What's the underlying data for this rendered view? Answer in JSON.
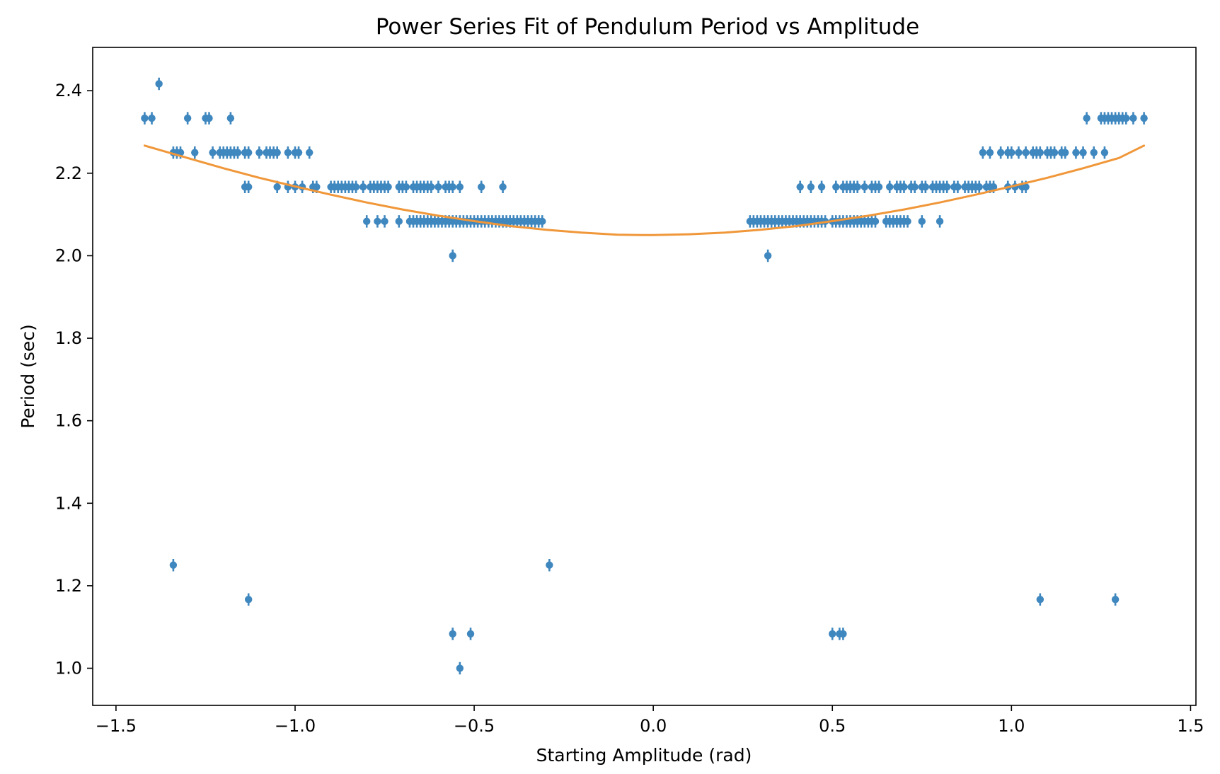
{
  "chart_data": {
    "type": "scatter",
    "title": "Power Series Fit of Pendulum Period vs Amplitude",
    "xlabel": "Starting Amplitude (rad)",
    "ylabel": "Period (sec)",
    "xlim": [
      -1.565,
      1.515
    ],
    "ylim": [
      0.91,
      2.505
    ],
    "grid": false,
    "x_ticks": [
      -1.5,
      -1.0,
      -0.5,
      0.0,
      0.5,
      1.0,
      1.5
    ],
    "x_tick_labels": [
      "−1.5",
      "−1.0",
      "−0.5",
      "0.0",
      "0.5",
      "1.0",
      "1.5"
    ],
    "y_ticks": [
      1.0,
      1.2,
      1.4,
      1.6,
      1.8,
      2.0,
      2.2,
      2.4
    ],
    "y_tick_labels": [
      "1.0",
      "1.2",
      "1.4",
      "1.6",
      "1.8",
      "2.0",
      "2.2",
      "2.4"
    ],
    "colors": {
      "data": "#3f87bf",
      "fit": "#f0973a"
    },
    "series": [
      {
        "kind": "points-with-error-bars",
        "y_error": 0.015,
        "levels": [
          {
            "y": 2.4167,
            "x": [
              -1.38
            ]
          },
          {
            "y": 2.3333,
            "x": [
              -1.42,
              -1.4,
              -1.3,
              -1.25,
              -1.24,
              -1.18,
              1.21,
              1.25,
              1.26,
              1.27,
              1.28,
              1.29,
              1.3,
              1.31,
              1.32,
              1.34,
              1.37
            ]
          },
          {
            "y": 2.25,
            "x": [
              -1.34,
              -1.33,
              -1.32,
              -1.28,
              -1.23,
              -1.21,
              -1.2,
              -1.19,
              -1.18,
              -1.17,
              -1.16,
              -1.14,
              -1.13,
              -1.1,
              -1.08,
              -1.07,
              -1.06,
              -1.05,
              -1.02,
              -1.0,
              -0.99,
              -0.96,
              0.92,
              0.94,
              0.97,
              0.99,
              1.0,
              1.02,
              1.04,
              1.06,
              1.07,
              1.08,
              1.1,
              1.11,
              1.12,
              1.14,
              1.15,
              1.18,
              1.2,
              1.23,
              1.26
            ]
          },
          {
            "y": 2.1667,
            "x": [
              -1.14,
              -1.13,
              -1.05,
              -1.02,
              -1.0,
              -0.98,
              -0.95,
              -0.94,
              -0.9,
              -0.89,
              -0.88,
              -0.87,
              -0.86,
              -0.85,
              -0.84,
              -0.83,
              -0.81,
              -0.79,
              -0.78,
              -0.77,
              -0.76,
              -0.75,
              -0.74,
              -0.71,
              -0.7,
              -0.69,
              -0.67,
              -0.66,
              -0.65,
              -0.64,
              -0.63,
              -0.62,
              -0.6,
              -0.58,
              -0.57,
              -0.56,
              -0.54,
              -0.48,
              -0.42,
              0.41,
              0.44,
              0.47,
              0.51,
              0.53,
              0.54,
              0.55,
              0.56,
              0.57,
              0.59,
              0.61,
              0.62,
              0.63,
              0.66,
              0.68,
              0.69,
              0.7,
              0.72,
              0.73,
              0.75,
              0.76,
              0.78,
              0.79,
              0.8,
              0.81,
              0.82,
              0.84,
              0.85,
              0.87,
              0.88,
              0.89,
              0.9,
              0.91,
              0.93,
              0.94,
              0.95,
              0.99,
              1.01,
              1.03,
              1.04
            ]
          },
          {
            "y": 2.0833,
            "x": [
              -0.8,
              -0.77,
              -0.75,
              -0.71,
              -0.68,
              -0.67,
              -0.66,
              -0.65,
              -0.64,
              -0.63,
              -0.62,
              -0.61,
              -0.6,
              -0.59,
              -0.58,
              -0.57,
              -0.56,
              -0.55,
              -0.54,
              -0.53,
              -0.52,
              -0.51,
              -0.5,
              -0.49,
              -0.48,
              -0.47,
              -0.46,
              -0.45,
              -0.44,
              -0.43,
              -0.42,
              -0.41,
              -0.4,
              -0.39,
              -0.38,
              -0.37,
              -0.36,
              -0.35,
              -0.34,
              -0.33,
              -0.32,
              -0.31,
              0.27,
              0.28,
              0.29,
              0.3,
              0.31,
              0.32,
              0.33,
              0.34,
              0.35,
              0.36,
              0.37,
              0.38,
              0.39,
              0.4,
              0.41,
              0.42,
              0.43,
              0.44,
              0.45,
              0.46,
              0.47,
              0.48,
              0.5,
              0.51,
              0.52,
              0.53,
              0.54,
              0.55,
              0.56,
              0.57,
              0.58,
              0.59,
              0.6,
              0.61,
              0.62,
              0.65,
              0.66,
              0.67,
              0.68,
              0.69,
              0.7,
              0.71,
              0.75,
              0.8
            ]
          },
          {
            "y": 2.0,
            "x": [
              -0.56,
              0.32
            ]
          },
          {
            "y": 1.25,
            "x": [
              -1.34,
              -0.29
            ]
          },
          {
            "y": 1.1667,
            "x": [
              -1.13,
              1.08,
              1.29
            ]
          },
          {
            "y": 1.0833,
            "x": [
              -0.56,
              -0.51,
              0.5,
              0.52,
              0.53
            ]
          },
          {
            "y": 1.0,
            "x": [
              -0.54
            ]
          }
        ]
      },
      {
        "kind": "fit-curve",
        "x": [
          -1.42,
          -1.3,
          -1.2,
          -1.1,
          -1.0,
          -0.9,
          -0.8,
          -0.7,
          -0.6,
          -0.5,
          -0.4,
          -0.3,
          -0.2,
          -0.1,
          -0.03,
          0.0,
          0.1,
          0.2,
          0.3,
          0.4,
          0.5,
          0.6,
          0.7,
          0.8,
          0.9,
          1.0,
          1.1,
          1.2,
          1.3,
          1.37
        ],
        "y": [
          2.267,
          2.237,
          2.212,
          2.189,
          2.168,
          2.148,
          2.129,
          2.112,
          2.097,
          2.084,
          2.072,
          2.063,
          2.056,
          2.051,
          2.05,
          2.05,
          2.052,
          2.056,
          2.063,
          2.072,
          2.084,
          2.097,
          2.112,
          2.129,
          2.148,
          2.168,
          2.189,
          2.212,
          2.237,
          2.267
        ]
      }
    ]
  }
}
